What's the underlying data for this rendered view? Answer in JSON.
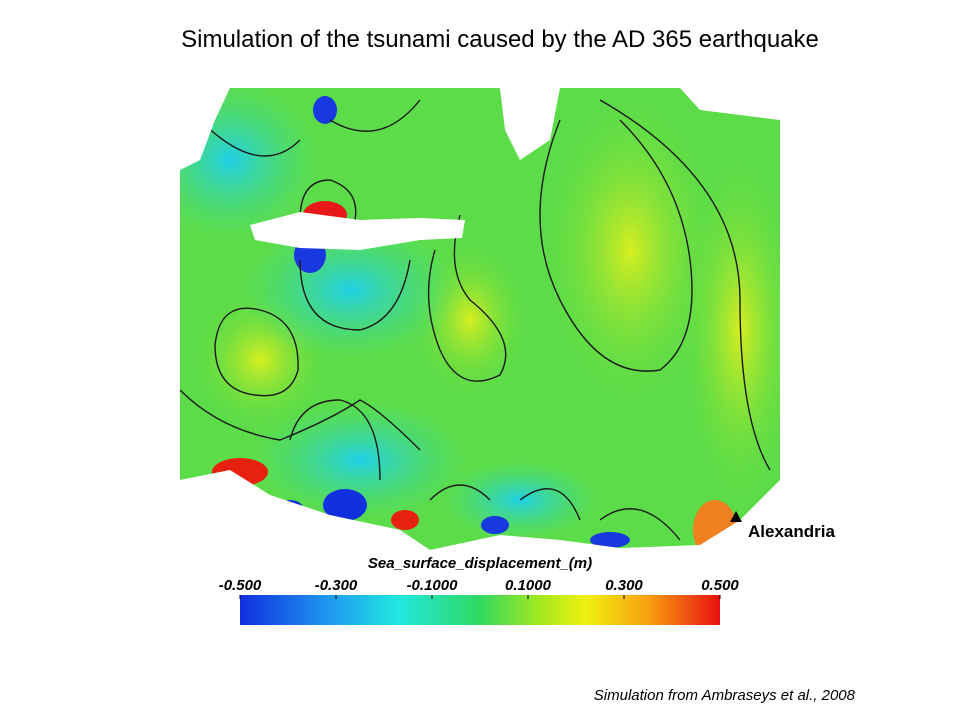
{
  "title": "Simulation of the tsunami caused by the AD 365 earthquake",
  "colorbar": {
    "label": "Sea_surface_displacement_(m)",
    "lim": [
      -0.5,
      0.5
    ],
    "ticks": [
      {
        "value": -0.5,
        "label": "-0.500"
      },
      {
        "value": -0.3,
        "label": "-0.300"
      },
      {
        "value": -0.1,
        "label": "-0.1000"
      },
      {
        "value": 0.1,
        "label": "0.1000"
      },
      {
        "value": 0.3,
        "label": "0.300"
      },
      {
        "value": 0.5,
        "label": "0.500"
      }
    ]
  },
  "marker": {
    "label": "Alexandria"
  },
  "credit": "Simulation from Ambraseys et al., 2008"
}
